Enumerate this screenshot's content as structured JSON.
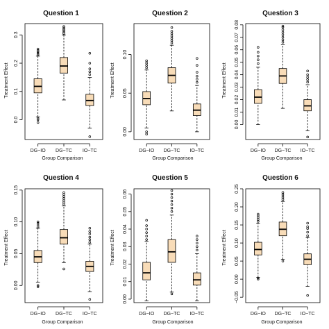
{
  "figure": {
    "xlabel": "Group Comparison",
    "ylabel": "Treatment Effect",
    "box_fill": "#f8dcb8",
    "box_stroke": "#000000"
  },
  "chart_data": [
    {
      "type": "box",
      "title": "Question 1",
      "categories": [
        "DG−IO",
        "DG−TC",
        "IO−TC"
      ],
      "ylim": [
        -0.07,
        0.34
      ],
      "yticks": [
        0.0,
        0.1,
        0.2,
        0.3
      ],
      "ytick_labels": [
        "0.0",
        "0.1",
        "0.2",
        "0.3"
      ],
      "boxes": [
        {
          "whisker_low": 0.01,
          "q1": 0.095,
          "median": 0.118,
          "q3": 0.145,
          "whisker_high": 0.225,
          "outliers": [
            -0.01,
            0.0,
            0.005,
            0.23,
            0.235,
            0.24,
            0.245,
            0.25
          ]
        },
        {
          "whisker_low": 0.07,
          "q1": 0.165,
          "median": 0.19,
          "q3": 0.22,
          "whisker_high": 0.3,
          "outliers": [
            0.305,
            0.31,
            0.315,
            0.32,
            0.325,
            0.33
          ]
        },
        {
          "whisker_low": -0.03,
          "q1": 0.05,
          "median": 0.068,
          "q3": 0.09,
          "whisker_high": 0.15,
          "outliers": [
            -0.06,
            0.16,
            0.17,
            0.18,
            0.2,
            0.235
          ]
        }
      ]
    },
    {
      "type": "box",
      "title": "Question 2",
      "categories": [
        "DG−IO",
        "DG−TC",
        "IO−TC"
      ],
      "ylim": [
        -0.01,
        0.14
      ],
      "yticks": [
        0.0,
        0.05,
        0.1
      ],
      "ytick_labels": [
        "0.00",
        "0.05",
        "0.10"
      ],
      "boxes": [
        {
          "whisker_low": 0.005,
          "q1": 0.035,
          "median": 0.043,
          "q3": 0.052,
          "whisker_high": 0.08,
          "outliers": [
            -0.003,
            0.0,
            0.083,
            0.086,
            0.089,
            0.092
          ]
        },
        {
          "whisker_low": 0.027,
          "q1": 0.063,
          "median": 0.073,
          "q3": 0.083,
          "whisker_high": 0.112,
          "outliers": [
            0.115,
            0.118,
            0.121,
            0.124,
            0.127,
            0.13,
            0.135
          ]
        },
        {
          "whisker_low": 0.0,
          "q1": 0.021,
          "median": 0.028,
          "q3": 0.036,
          "whisker_high": 0.06,
          "outliers": [
            0.064,
            0.068,
            0.072,
            0.077,
            0.086,
            0.095
          ]
        }
      ]
    },
    {
      "type": "box",
      "title": "Question 3",
      "categories": [
        "DG−IO",
        "DG−TC",
        "IO−TC"
      ],
      "ylim": [
        -0.012,
        0.081
      ],
      "yticks": [
        0.0,
        0.01,
        0.02,
        0.03,
        0.04,
        0.05,
        0.06,
        0.07,
        0.08
      ],
      "ytick_labels": [
        "0.00",
        "0.01",
        "0.02",
        "0.03",
        "0.04",
        "0.05",
        "0.06",
        "0.07",
        "0.08"
      ],
      "boxes": [
        {
          "whisker_low": 0.0,
          "q1": 0.017,
          "median": 0.022,
          "q3": 0.028,
          "whisker_high": 0.046,
          "outliers": [
            0.049,
            0.052,
            0.055,
            0.058,
            0.062
          ]
        },
        {
          "whisker_low": 0.013,
          "q1": 0.033,
          "median": 0.039,
          "q3": 0.045,
          "whisker_high": 0.064,
          "outliers": [
            0.066,
            0.068,
            0.07,
            0.072,
            0.074,
            0.076,
            0.078,
            0.079
          ]
        },
        {
          "whisker_low": -0.005,
          "q1": 0.011,
          "median": 0.015,
          "q3": 0.02,
          "whisker_high": 0.032,
          "outliers": [
            -0.01,
            0.034,
            0.036,
            0.038,
            0.04,
            0.043
          ]
        }
      ]
    },
    {
      "type": "box",
      "title": "Question 4",
      "categories": [
        "DG−IO",
        "DG−TC",
        "IO−TC"
      ],
      "ylim": [
        -0.027,
        0.152
      ],
      "yticks": [
        0.0,
        0.05,
        0.1,
        0.15
      ],
      "ytick_labels": [
        "0.00",
        "0.05",
        "0.10",
        "0.15"
      ],
      "boxes": [
        {
          "whisker_low": 0.005,
          "q1": 0.036,
          "median": 0.045,
          "q3": 0.055,
          "whisker_high": 0.09,
          "outliers": [
            -0.002,
            0.0,
            0.092,
            0.095,
            0.098,
            0.1
          ]
        },
        {
          "whisker_low": 0.036,
          "q1": 0.065,
          "median": 0.075,
          "q3": 0.088,
          "whisker_high": 0.125,
          "outliers": [
            0.026,
            0.128,
            0.131,
            0.134,
            0.137,
            0.14,
            0.143,
            0.146
          ]
        },
        {
          "whisker_low": -0.01,
          "q1": 0.022,
          "median": 0.03,
          "q3": 0.038,
          "whisker_high": 0.065,
          "outliers": [
            -0.022,
            0.068,
            0.072,
            0.076,
            0.081,
            0.085,
            0.09
          ]
        }
      ]
    },
    {
      "type": "box",
      "title": "Question 5",
      "categories": [
        "DG−IO",
        "DG−TC",
        "IO−TC"
      ],
      "ylim": [
        -0.002,
        0.063
      ],
      "yticks": [
        0.0,
        0.01,
        0.02,
        0.03,
        0.04,
        0.05,
        0.06
      ],
      "ytick_labels": [
        "0.00",
        "0.01",
        "0.02",
        "0.03",
        "0.04",
        "0.05",
        "0.06"
      ],
      "boxes": [
        {
          "whisker_low": -0.001,
          "q1": 0.011,
          "median": 0.015,
          "q3": 0.021,
          "whisker_high": 0.033,
          "outliers": [
            0.034,
            0.036,
            0.038,
            0.04,
            0.042,
            0.045
          ]
        },
        {
          "whisker_low": 0.004,
          "q1": 0.021,
          "median": 0.027,
          "q3": 0.034,
          "whisker_high": 0.048,
          "outliers": [
            0.003,
            0.05,
            0.052,
            0.054,
            0.056,
            0.058,
            0.06,
            0.062
          ]
        },
        {
          "whisker_low": -0.001,
          "q1": 0.008,
          "median": 0.011,
          "q3": 0.015,
          "whisker_high": 0.026,
          "outliers": [
            0.028,
            0.03,
            0.032,
            0.034,
            0.036
          ]
        }
      ]
    },
    {
      "type": "box",
      "title": "Question 6",
      "categories": [
        "DG−IO",
        "DG−TC",
        "IO−TC"
      ],
      "ylim": [
        -0.065,
        0.25
      ],
      "yticks": [
        -0.05,
        0.0,
        0.05,
        0.1,
        0.15,
        0.2,
        0.25
      ],
      "ytick_labels": [
        "−0.05",
        "0.00",
        "0.05",
        "0.10",
        "0.15",
        "0.20",
        "0.25"
      ],
      "boxes": [
        {
          "whisker_low": 0.005,
          "q1": 0.067,
          "median": 0.082,
          "q3": 0.102,
          "whisker_high": 0.155,
          "outliers": [
            0.0,
            0.003,
            0.16,
            0.165,
            0.17,
            0.175,
            0.18
          ]
        },
        {
          "whisker_low": 0.055,
          "q1": 0.12,
          "median": 0.138,
          "q3": 0.158,
          "whisker_high": 0.215,
          "outliers": [
            0.05,
            0.22,
            0.225,
            0.23,
            0.235,
            0.24
          ]
        },
        {
          "whisker_low": -0.02,
          "q1": 0.04,
          "median": 0.055,
          "q3": 0.07,
          "whisker_high": 0.115,
          "outliers": [
            -0.045,
            0.12,
            0.13,
            0.14,
            0.145,
            0.155
          ]
        }
      ]
    }
  ]
}
